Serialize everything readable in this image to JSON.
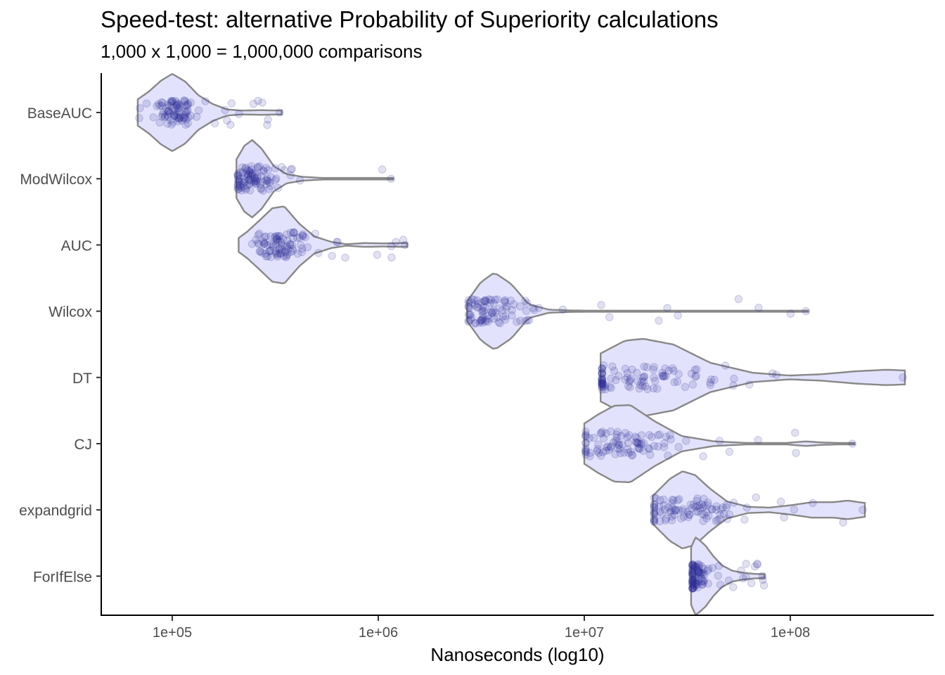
{
  "chart_data": {
    "type": "violin",
    "title": "Speed-test: alternative Probability of Superiority calculations",
    "subtitle": "1,000  x  1,000  =  1,000,000 comparisons",
    "xlabel": "Nanoseconds (log10)",
    "ylabel": "",
    "x_scale": "log10",
    "xlim": [
      45000,
      520000000
    ],
    "x_ticks": [
      {
        "value": 100000,
        "label": "1e+05"
      },
      {
        "value": 1000000,
        "label": "1e+06"
      },
      {
        "value": 10000000,
        "label": "1e+07"
      },
      {
        "value": 100000000,
        "label": "1e+08"
      }
    ],
    "grid": false,
    "legend": "none",
    "categories": [
      "BaseAUC",
      "ModWilcox",
      "AUC",
      "Wilcox",
      "DT",
      "CJ",
      "expandgrid",
      "ForIfElse"
    ],
    "series": [
      {
        "name": "BaseAUC",
        "min": 68000,
        "max": 340000,
        "mode": 105000
      },
      {
        "name": "ModWilcox",
        "min": 205000,
        "max": 1180000,
        "mode": 240000
      },
      {
        "name": "AUC",
        "min": 210000,
        "max": 1380000,
        "mode": 340000
      },
      {
        "name": "Wilcox",
        "min": 2700000,
        "max": 122000000,
        "mode": 3400000
      },
      {
        "name": "DT",
        "min": 12000000,
        "max": 360000000,
        "mode": 16000000
      },
      {
        "name": "CJ",
        "min": 10000000,
        "max": 205000000,
        "mode": 15000000
      },
      {
        "name": "expandgrid",
        "min": 21500000,
        "max": 230000000,
        "mode": 31000000
      },
      {
        "name": "ForIfElse",
        "min": 33000000,
        "max": 75000000,
        "mode": 34500000
      }
    ],
    "colors": {
      "violin_fill": "#e2e2fc",
      "violin_stroke": "#888888",
      "point": "#2c2c98"
    }
  }
}
